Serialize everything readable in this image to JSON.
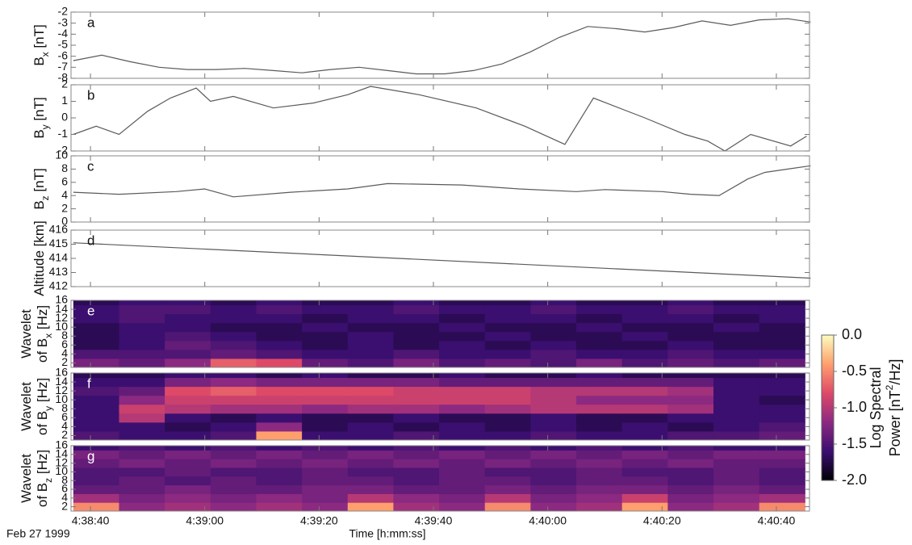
{
  "chart_data": [
    {
      "type": "line",
      "annotation": "a",
      "ylabel": [
        "B",
        "x",
        " [nT]"
      ],
      "color": "#5a5a5a",
      "xlim": [
        -3.4,
        125.8
      ],
      "ylim": [
        -8,
        -2
      ],
      "yticks": [
        -8,
        -7,
        -6,
        -5,
        -4,
        -3,
        -2
      ],
      "x": [
        -3,
        2,
        7,
        12,
        17,
        22,
        27,
        32,
        37,
        42,
        47,
        52,
        57,
        62,
        67,
        72,
        77,
        82,
        87,
        92,
        97,
        102,
        107,
        112,
        117,
        122,
        126
      ],
      "values": [
        -6.4,
        -5.9,
        -6.5,
        -7.0,
        -7.2,
        -7.2,
        -7.1,
        -7.3,
        -7.5,
        -7.2,
        -7.0,
        -7.3,
        -7.6,
        -7.6,
        -7.3,
        -6.7,
        -5.6,
        -4.3,
        -3.3,
        -3.5,
        -3.8,
        -3.4,
        -2.8,
        -3.2,
        -2.7,
        -2.6,
        -2.9
      ]
    },
    {
      "type": "line",
      "annotation": "b",
      "ylabel": [
        "B",
        "y",
        " [nT]"
      ],
      "color": "#5a5a5a",
      "xlim": [
        -3.4,
        125.8
      ],
      "ylim": [
        -2,
        2
      ],
      "yticks": [
        -2,
        -1,
        0,
        1,
        2
      ],
      "x": [
        -3,
        1,
        5,
        10,
        14,
        18.5,
        21,
        25,
        32,
        39,
        45,
        49,
        57.5,
        67.5,
        76,
        83,
        88,
        97,
        104,
        108,
        111,
        115.5,
        122.5,
        125.3
      ],
      "values": [
        -1.0,
        -0.5,
        -1.0,
        0.4,
        1.2,
        1.8,
        1.0,
        1.3,
        0.6,
        0.9,
        1.4,
        1.9,
        1.4,
        0.6,
        -0.5,
        -1.6,
        1.2,
        0.0,
        -1.0,
        -1.4,
        -2.0,
        -1.0,
        -1.7,
        -1.1
      ]
    },
    {
      "type": "line",
      "annotation": "c",
      "ylabel": [
        "B",
        "z",
        " [nT]"
      ],
      "color": "#5a5a5a",
      "xlim": [
        -3.4,
        125.8
      ],
      "ylim": [
        0,
        10
      ],
      "yticks": [
        0,
        2,
        4,
        6,
        8,
        10
      ],
      "x": [
        -3,
        5,
        15,
        20,
        25,
        35,
        45,
        52,
        65,
        75,
        85,
        90,
        100,
        105,
        110,
        115,
        118,
        122,
        126
      ],
      "values": [
        4.5,
        4.2,
        4.6,
        5.0,
        3.8,
        4.5,
        5.0,
        5.8,
        5.6,
        5.0,
        4.6,
        4.9,
        4.6,
        4.2,
        4.0,
        6.5,
        7.5,
        8.0,
        8.5
      ]
    },
    {
      "type": "line",
      "annotation": "d",
      "ylabel": [
        "Altitude [km]"
      ],
      "color": "#5a5a5a",
      "xlim": [
        -3.4,
        125.8
      ],
      "ylim": [
        412,
        416
      ],
      "yticks": [
        412,
        413,
        414,
        415,
        416
      ],
      "x": [
        -3,
        126
      ],
      "values": [
        415.1,
        412.6
      ]
    },
    {
      "type": "heatmap",
      "annotation": "e",
      "ylabel": [
        "Wavelet",
        "of B",
        "x",
        " [Hz]"
      ],
      "xlim": [
        -3.4,
        125.8
      ],
      "ylim": [
        1,
        16
      ],
      "yticks": [
        2,
        4,
        6,
        8,
        10,
        12,
        14,
        16
      ],
      "x_bins": [
        -3,
        5,
        13,
        21,
        29,
        37,
        45,
        53,
        61,
        69,
        77,
        85,
        93,
        101,
        109,
        117,
        125
      ],
      "y_bins": [
        1,
        3,
        5,
        7,
        9,
        11,
        13,
        15,
        16
      ],
      "z": [
        [
          -1.3,
          -1.4,
          -1.2,
          -0.7,
          -0.8,
          -1.4,
          -1.5,
          -1.3,
          -1.5,
          -1.4,
          -1.5,
          -1.3,
          -1.5,
          -1.4,
          -1.5,
          -1.4
        ],
        [
          -1.5,
          -1.5,
          -1.5,
          -1.4,
          -1.5,
          -1.6,
          -1.6,
          -1.5,
          -1.6,
          -1.6,
          -1.5,
          -1.6,
          -1.6,
          -1.5,
          -1.6,
          -1.6
        ],
        [
          -1.7,
          -1.6,
          -1.4,
          -1.5,
          -1.6,
          -1.7,
          -1.6,
          -1.7,
          -1.6,
          -1.7,
          -1.6,
          -1.7,
          -1.7,
          -1.6,
          -1.7,
          -1.7
        ],
        [
          -1.7,
          -1.6,
          -1.5,
          -1.6,
          -1.7,
          -1.7,
          -1.6,
          -1.7,
          -1.7,
          -1.6,
          -1.7,
          -1.7,
          -1.6,
          -1.7,
          -1.7,
          -1.7
        ],
        [
          -1.7,
          -1.6,
          -1.6,
          -1.7,
          -1.7,
          -1.6,
          -1.7,
          -1.7,
          -1.6,
          -1.7,
          -1.7,
          -1.6,
          -1.7,
          -1.7,
          -1.6,
          -1.7
        ],
        [
          -1.6,
          -1.5,
          -1.6,
          -1.6,
          -1.6,
          -1.7,
          -1.6,
          -1.6,
          -1.7,
          -1.6,
          -1.6,
          -1.7,
          -1.6,
          -1.6,
          -1.7,
          -1.6
        ],
        [
          -1.6,
          -1.5,
          -1.5,
          -1.6,
          -1.5,
          -1.6,
          -1.6,
          -1.5,
          -1.6,
          -1.6,
          -1.5,
          -1.6,
          -1.6,
          -1.5,
          -1.6,
          -1.6
        ],
        [
          -1.7,
          -1.6,
          -1.6,
          -1.7,
          -1.6,
          -1.7,
          -1.7,
          -1.6,
          -1.7,
          -1.7,
          -1.6,
          -1.7,
          -1.7,
          -1.6,
          -1.7,
          -1.7
        ]
      ]
    },
    {
      "type": "heatmap",
      "annotation": "f",
      "ylabel": [
        "Wavelet",
        "of B",
        "y",
        " [Hz]"
      ],
      "xlim": [
        -3.4,
        125.8
      ],
      "ylim": [
        1,
        16
      ],
      "yticks": [
        2,
        4,
        6,
        8,
        10,
        12,
        14,
        16
      ],
      "x_bins": [
        -3,
        5,
        13,
        21,
        29,
        37,
        45,
        53,
        61,
        69,
        77,
        85,
        93,
        101,
        109,
        117,
        125
      ],
      "y_bins": [
        1,
        3,
        5,
        7,
        9,
        11,
        13,
        15,
        16
      ],
      "z": [
        [
          -1.5,
          -1.6,
          -1.6,
          -1.5,
          -0.4,
          -1.6,
          -1.6,
          -1.5,
          -1.6,
          -1.6,
          -1.5,
          -1.6,
          -1.6,
          -1.5,
          -1.5,
          -1.4
        ],
        [
          -1.6,
          -1.6,
          -1.7,
          -1.6,
          -1.2,
          -1.7,
          -1.6,
          -1.7,
          -1.6,
          -1.7,
          -1.6,
          -1.7,
          -1.6,
          -1.7,
          -1.6,
          -1.5
        ],
        [
          -1.6,
          -1.0,
          -1.6,
          -1.7,
          -1.6,
          -1.7,
          -1.7,
          -1.6,
          -1.7,
          -1.7,
          -1.6,
          -1.7,
          -1.7,
          -1.6,
          -1.6,
          -1.6
        ],
        [
          -1.6,
          -0.9,
          -1.0,
          -1.1,
          -1.1,
          -1.2,
          -1.1,
          -1.1,
          -1.2,
          -1.1,
          -1.0,
          -1.0,
          -1.0,
          -1.1,
          -1.6,
          -1.6
        ],
        [
          -1.6,
          -1.2,
          -0.9,
          -0.9,
          -0.9,
          -0.9,
          -0.9,
          -0.9,
          -0.9,
          -0.9,
          -1.0,
          -1.2,
          -1.2,
          -1.2,
          -1.6,
          -1.7
        ],
        [
          -1.5,
          -1.4,
          -0.8,
          -0.7,
          -0.8,
          -0.8,
          -0.8,
          -0.9,
          -0.9,
          -0.9,
          -1.0,
          -1.0,
          -1.0,
          -1.1,
          -1.6,
          -1.6
        ],
        [
          -1.6,
          -1.6,
          -1.3,
          -1.2,
          -1.3,
          -1.3,
          -1.3,
          -1.3,
          -1.4,
          -1.4,
          -1.4,
          -1.4,
          -1.4,
          -1.4,
          -1.6,
          -1.6
        ],
        [
          -1.7,
          -1.7,
          -1.6,
          -1.6,
          -1.7,
          -1.6,
          -1.7,
          -1.7,
          -1.6,
          -1.7,
          -1.7,
          -1.6,
          -1.7,
          -1.7,
          -1.7,
          -1.7
        ]
      ]
    },
    {
      "type": "heatmap",
      "annotation": "g",
      "ylabel": [
        "Wavelet",
        "of B",
        "z",
        " [Hz]"
      ],
      "xlim": [
        -3.4,
        125.8
      ],
      "ylim": [
        1,
        16
      ],
      "yticks": [
        2,
        4,
        6,
        8,
        10,
        12,
        14,
        16
      ],
      "x_bins": [
        -3,
        5,
        13,
        21,
        29,
        37,
        45,
        53,
        61,
        69,
        77,
        85,
        93,
        101,
        109,
        117,
        125
      ],
      "y_bins": [
        1,
        3,
        5,
        7,
        9,
        11,
        13,
        15,
        16
      ],
      "z": [
        [
          -0.5,
          -1.2,
          -1.1,
          -1.2,
          -1.1,
          -1.2,
          -0.4,
          -1.1,
          -1.2,
          -0.5,
          -1.2,
          -1.1,
          -0.4,
          -1.2,
          -1.1,
          -0.5
        ],
        [
          -1.1,
          -1.3,
          -1.2,
          -1.3,
          -1.2,
          -1.3,
          -1.0,
          -1.2,
          -1.3,
          -1.0,
          -1.3,
          -1.2,
          -0.9,
          -1.3,
          -1.2,
          -1.1
        ],
        [
          -1.4,
          -1.4,
          -1.3,
          -1.4,
          -1.4,
          -1.3,
          -1.3,
          -1.4,
          -1.4,
          -1.3,
          -1.4,
          -1.3,
          -1.3,
          -1.4,
          -1.3,
          -1.4
        ],
        [
          -1.5,
          -1.4,
          -1.5,
          -1.4,
          -1.5,
          -1.4,
          -1.4,
          -1.5,
          -1.4,
          -1.4,
          -1.5,
          -1.4,
          -1.4,
          -1.5,
          -1.4,
          -1.5
        ],
        [
          -1.5,
          -1.5,
          -1.4,
          -1.5,
          -1.5,
          -1.4,
          -1.5,
          -1.5,
          -1.4,
          -1.5,
          -1.5,
          -1.4,
          -1.5,
          -1.5,
          -1.4,
          -1.5
        ],
        [
          -1.4,
          -1.3,
          -1.4,
          -1.3,
          -1.4,
          -1.3,
          -1.4,
          -1.3,
          -1.4,
          -1.3,
          -1.4,
          -1.3,
          -1.4,
          -1.3,
          -1.4,
          -1.4
        ],
        [
          -1.3,
          -1.4,
          -1.3,
          -1.4,
          -1.3,
          -1.4,
          -1.3,
          -1.4,
          -1.3,
          -1.4,
          -1.3,
          -1.4,
          -1.3,
          -1.4,
          -1.3,
          -1.3
        ],
        [
          -1.6,
          -1.5,
          -1.6,
          -1.5,
          -1.6,
          -1.5,
          -1.6,
          -1.5,
          -1.6,
          -1.5,
          -1.6,
          -1.5,
          -1.6,
          -1.5,
          -1.6,
          -1.6
        ]
      ],
      "xticks": [
        {
          "value": 0,
          "label": "4:38:40"
        },
        {
          "value": 20,
          "label": "4:39:00"
        },
        {
          "value": 40,
          "label": "4:39:20"
        },
        {
          "value": 60,
          "label": "4:39:40"
        },
        {
          "value": 80,
          "label": "4:40:00"
        },
        {
          "value": 100,
          "label": "4:40:20"
        },
        {
          "value": 120,
          "label": "4:40:40"
        }
      ],
      "xlabel": "Time [h:mm:ss]",
      "date": "Feb 27 1999"
    }
  ],
  "colorbar": {
    "label": [
      "Log Spectral",
      "Power [nT",
      "2",
      "/Hz]"
    ],
    "clim": [
      -2,
      0
    ],
    "colors": [
      "#000004",
      "#3b0f70",
      "#8c2981",
      "#de4968",
      "#fe9f6d",
      "#fcfdbf"
    ],
    "ticks": [
      {
        "value": 0,
        "label": "0.0"
      },
      -0.5,
      {
        "value": -1,
        "label": "-1.0"
      },
      -1.5,
      {
        "value": -2,
        "label": "-2.0"
      }
    ]
  }
}
